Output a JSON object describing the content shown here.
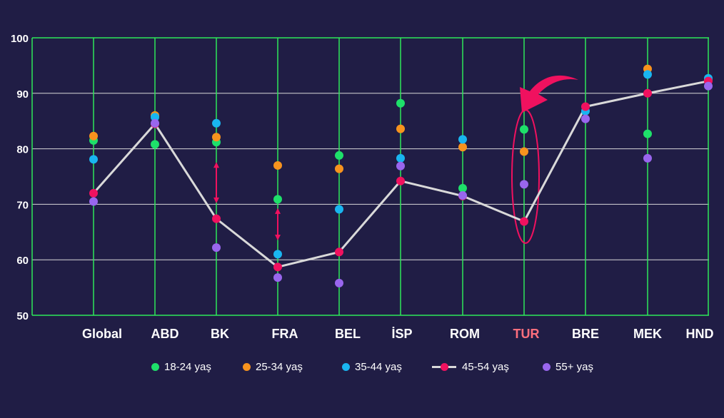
{
  "chart_data": {
    "type": "scatter",
    "categories": [
      "Global",
      "ABD",
      "BK",
      "FRA",
      "BEL",
      "İSP",
      "ROM",
      "TUR",
      "BRE",
      "MEK",
      "HND"
    ],
    "highlight_category": "TUR",
    "ylim": [
      50,
      100
    ],
    "yticks": [
      "50",
      "60",
      "70",
      "80",
      "90",
      "100"
    ],
    "grid": true,
    "legend_position": "bottom",
    "series": [
      {
        "name": "18-24 yaş",
        "color": "#1ee06a",
        "marker": "dot",
        "values": [
          81.5,
          80.8,
          81.2,
          70.9,
          78.8,
          88.2,
          72.9,
          83.5,
          null,
          82.7,
          92.4
        ]
      },
      {
        "name": "25-34 yaş",
        "color": "#f7931e",
        "marker": "dot",
        "values": [
          82.3,
          86.0,
          82.1,
          77.0,
          76.4,
          83.6,
          80.3,
          79.5,
          null,
          94.4,
          null
        ]
      },
      {
        "name": "35-44 yaş",
        "color": "#19b5f0",
        "marker": "dot",
        "values": [
          78.1,
          85.7,
          84.6,
          61.0,
          69.1,
          78.3,
          81.7,
          null,
          86.8,
          93.4,
          92.7
        ]
      },
      {
        "name": "45-54 yaş",
        "color": "#f0115f",
        "marker": "line",
        "line_color": "#d9d9d9",
        "values": [
          72.0,
          84.5,
          67.4,
          58.7,
          61.4,
          74.2,
          71.5,
          66.9,
          87.6,
          90.0,
          92.2
        ]
      },
      {
        "name": "55+ yaş",
        "color": "#9966ee",
        "marker": "dot",
        "values": [
          70.5,
          84.6,
          62.2,
          56.8,
          55.8,
          76.9,
          71.6,
          73.6,
          85.4,
          78.3,
          91.3
        ]
      }
    ],
    "annotations": [
      {
        "type": "double-arrow",
        "category": "BK",
        "from": 70.2,
        "to": 77.6,
        "color": "#f0115f"
      },
      {
        "type": "double-arrow",
        "category": "FRA",
        "from": 63.5,
        "to": 69.3,
        "color": "#f0115f"
      },
      {
        "type": "ellipse",
        "category": "TUR",
        "from": 63.0,
        "to": 87.0,
        "color": "#f0115f"
      },
      {
        "type": "curved-arrow",
        "category": "TUR",
        "color": "#f0115f"
      }
    ]
  },
  "colors": {
    "background": "#201d45",
    "vertical_grid": "#2ee85a",
    "horizontal_grid": "#d8d8d8",
    "label_text": "#ffffff",
    "highlight_label": "#ff6f7d",
    "connector_line": "#d9d9d9"
  }
}
